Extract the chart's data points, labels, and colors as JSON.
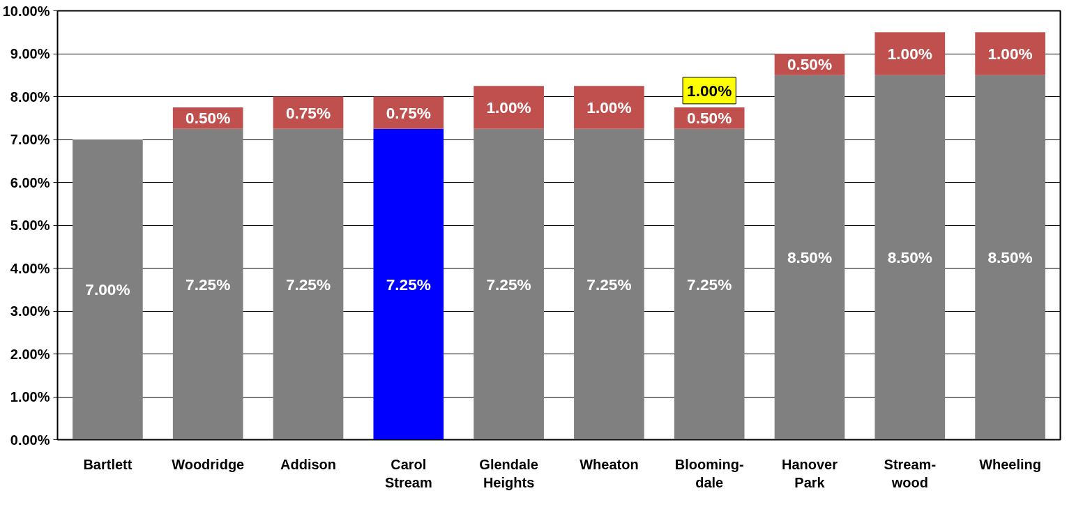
{
  "chart_data": {
    "type": "bar",
    "stacked": true,
    "categories": [
      "Bartlett",
      "Woodridge",
      "Addison",
      "Carol\nStream",
      "Glendale\nHeights",
      "Wheaton",
      "Blooming-\ndale",
      "Hanover\nPark",
      "Stream-\nwood",
      "Wheeling"
    ],
    "series": [
      {
        "colors": [
          "#808080",
          "#808080",
          "#808080",
          "#0000ff",
          "#808080",
          "#808080",
          "#808080",
          "#808080",
          "#808080",
          "#808080"
        ],
        "values": [
          7.0,
          7.25,
          7.25,
          7.25,
          7.25,
          7.25,
          7.25,
          8.5,
          8.5,
          8.5
        ],
        "value_labels": [
          "7.00%",
          "7.25%",
          "7.25%",
          "7.25%",
          "7.25%",
          "7.25%",
          "7.25%",
          "8.50%",
          "8.50%",
          "8.50%"
        ]
      },
      {
        "color": "#c0504d",
        "values": [
          null,
          0.5,
          0.75,
          0.75,
          1.0,
          1.0,
          0.5,
          0.5,
          1.0,
          1.0
        ],
        "value_labels": [
          null,
          "0.50%",
          "0.75%",
          "0.75%",
          "1.00%",
          "1.00%",
          "0.50%",
          "0.50%",
          "1.00%",
          "1.00%"
        ]
      }
    ],
    "ylim": [
      0,
      10
    ],
    "yticks": [
      {
        "value": 0,
        "label": "0.00%"
      },
      {
        "value": 1,
        "label": "1.00%"
      },
      {
        "value": 2,
        "label": "2.00%"
      },
      {
        "value": 3,
        "label": "3.00%"
      },
      {
        "value": 4,
        "label": "4.00%"
      },
      {
        "value": 5,
        "label": "5.00%"
      },
      {
        "value": 6,
        "label": "6.00%"
      },
      {
        "value": 7,
        "label": "7.00%"
      },
      {
        "value": 8,
        "label": "8.00%"
      },
      {
        "value": 9,
        "label": "9.00%"
      },
      {
        "value": 10,
        "label": "10.00%"
      }
    ],
    "grid": "y",
    "annotations": [
      {
        "text": "1.00%",
        "x": "Blooming-\ndale",
        "y": 7.75
      }
    ]
  }
}
